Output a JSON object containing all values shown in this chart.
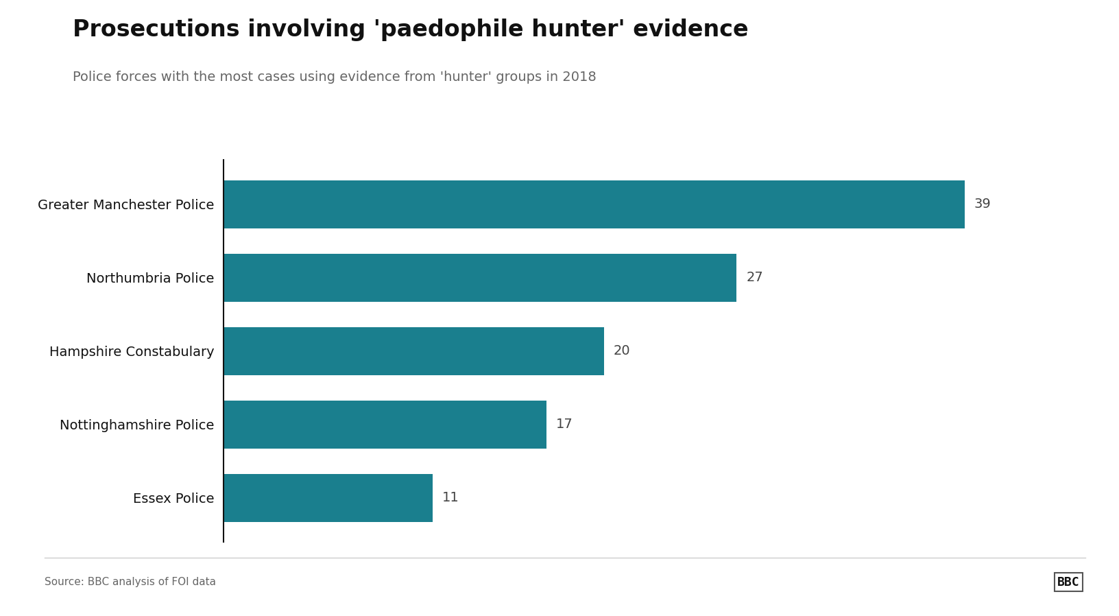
{
  "title": "Prosecutions involving 'paedophile hunter' evidence",
  "subtitle": "Police forces with the most cases using evidence from 'hunter' groups in 2018",
  "categories": [
    "Essex Police",
    "Nottinghamshire Police",
    "Hampshire Constabulary",
    "Northumbria Police",
    "Greater Manchester Police"
  ],
  "values": [
    11,
    17,
    20,
    27,
    39
  ],
  "bar_color": "#1a7f8e",
  "value_color": "#444444",
  "label_color": "#111111",
  "title_color": "#111111",
  "subtitle_color": "#666666",
  "source_text": "Source: BBC analysis of FOI data",
  "bbc_text": "BBC",
  "background_color": "#ffffff",
  "title_fontsize": 24,
  "subtitle_fontsize": 14,
  "label_fontsize": 14,
  "value_fontsize": 14,
  "source_fontsize": 11,
  "xlim": [
    0,
    43
  ]
}
